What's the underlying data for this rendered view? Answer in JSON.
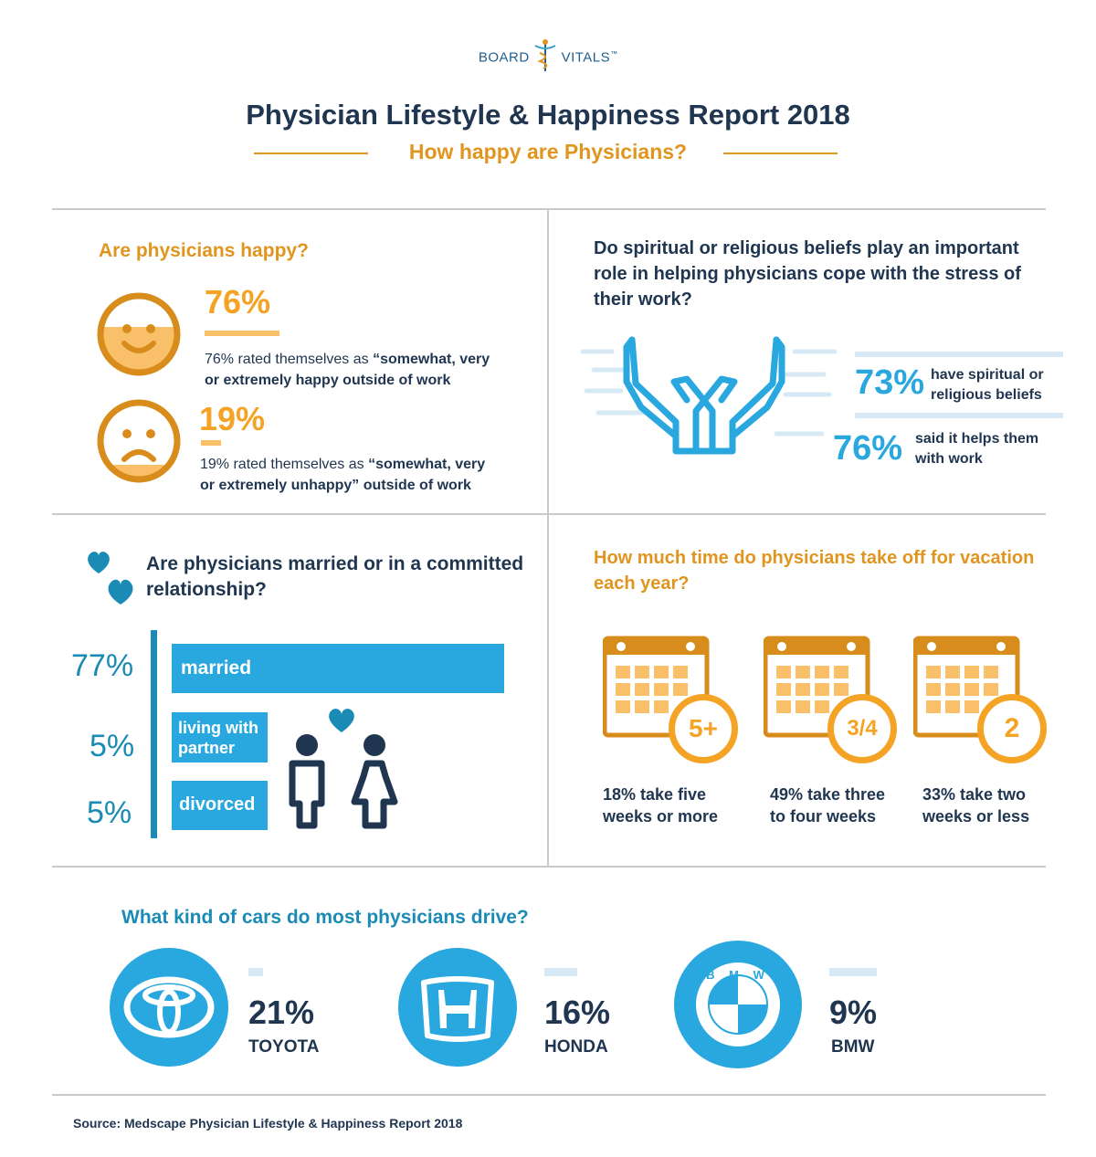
{
  "logo": {
    "left": "BOARD",
    "right": "VITALS",
    "tm": "™"
  },
  "header": {
    "title": "Physician Lifestyle & Happiness Report 2018",
    "subtitle": "How happy are Physicians?"
  },
  "happiness": {
    "heading": "Are physicians happy?",
    "happy": {
      "pct": "76%",
      "text_line1_plain": "76% rated themselves as ",
      "text_line1_bold": "“somewhat, very",
      "text_line2": "or extremely happy outside of work"
    },
    "unhappy": {
      "pct": "19%",
      "text_line1_plain": "19% rated themselves as ",
      "text_line1_bold": "“somewhat, very",
      "text_line2": "or extremely unhappy” outside of work"
    }
  },
  "spiritual": {
    "heading_l1": "Do spiritual or religious beliefs play an important",
    "heading_l2": "role in helping physicians cope with the stress of",
    "heading_l3": "their work?",
    "stat1": {
      "pct": "73%",
      "l1": "have spiritual or",
      "l2": "religious beliefs"
    },
    "stat2": {
      "pct": "76%",
      "l1": "said it helps them",
      "l2": "with work"
    }
  },
  "relationship": {
    "heading_l1": "Are physicians married or in a committed",
    "heading_l2": "relationship?",
    "bars": [
      {
        "pct": "77%",
        "label": "married"
      },
      {
        "pct": "5%",
        "label_l1": "living with",
        "label_l2": "partner"
      },
      {
        "pct": "5%",
        "label": "divorced"
      }
    ]
  },
  "vacation": {
    "heading_l1": "How much time do physicians take off for vacation",
    "heading_l2": "each year?",
    "items": [
      {
        "badge": "5+",
        "l1": "18% take five",
        "l2": "weeks or more"
      },
      {
        "badge": "3/4",
        "l1": "49% take three",
        "l2": "to four weeks"
      },
      {
        "badge": "2",
        "l1": "33% take two",
        "l2": "weeks or less"
      }
    ]
  },
  "cars": {
    "heading": "What kind of cars do most physicians drive?",
    "items": [
      {
        "pct": "21%",
        "name": "TOYOTA"
      },
      {
        "pct": "16%",
        "name": "HONDA"
      },
      {
        "pct": "9%",
        "name": "BMW",
        "logo_letters": "B M W"
      }
    ]
  },
  "source": "Source: Medscape Physician Lifestyle & Happiness Report 2018",
  "colors": {
    "navy": "#1f3550",
    "orange": "#e0951f",
    "blue": "#29a7df",
    "teal": "#1a8bb5"
  }
}
